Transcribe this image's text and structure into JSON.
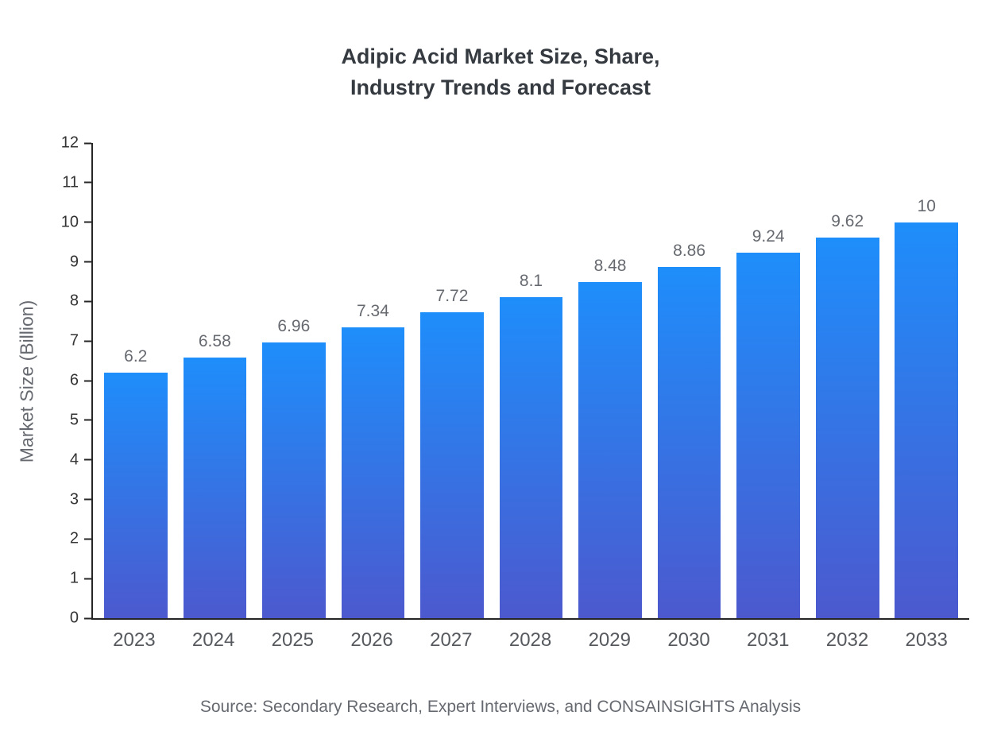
{
  "title": {
    "line1": "Adipic Acid Market Size, Share,",
    "line2": "Industry Trends and Forecast"
  },
  "source": "Source: Secondary Research, Expert Interviews, and CONSAINSIGHTS Analysis",
  "chart_data": {
    "type": "bar",
    "title": "Adipic Acid Market Size, Share, Industry Trends and Forecast",
    "categories": [
      "2023",
      "2024",
      "2025",
      "2026",
      "2027",
      "2028",
      "2029",
      "2030",
      "2031",
      "2032",
      "2033"
    ],
    "values": [
      6.2,
      6.58,
      6.96,
      7.34,
      7.72,
      8.1,
      8.48,
      8.86,
      9.24,
      9.62,
      10
    ],
    "labels": [
      "6.2",
      "6.58",
      "6.96",
      "7.34",
      "7.72",
      "8.1",
      "8.48",
      "8.86",
      "9.24",
      "9.62",
      "10"
    ],
    "xlabel": "",
    "ylabel": "Market Size (Billion)",
    "ylim": [
      0,
      12
    ],
    "ytick_step": 1,
    "grid": false,
    "legend": "none",
    "bar_color_top": "#1E8EFB",
    "bar_color_bottom": "#4C59CE",
    "axis_color": "#262626"
  }
}
